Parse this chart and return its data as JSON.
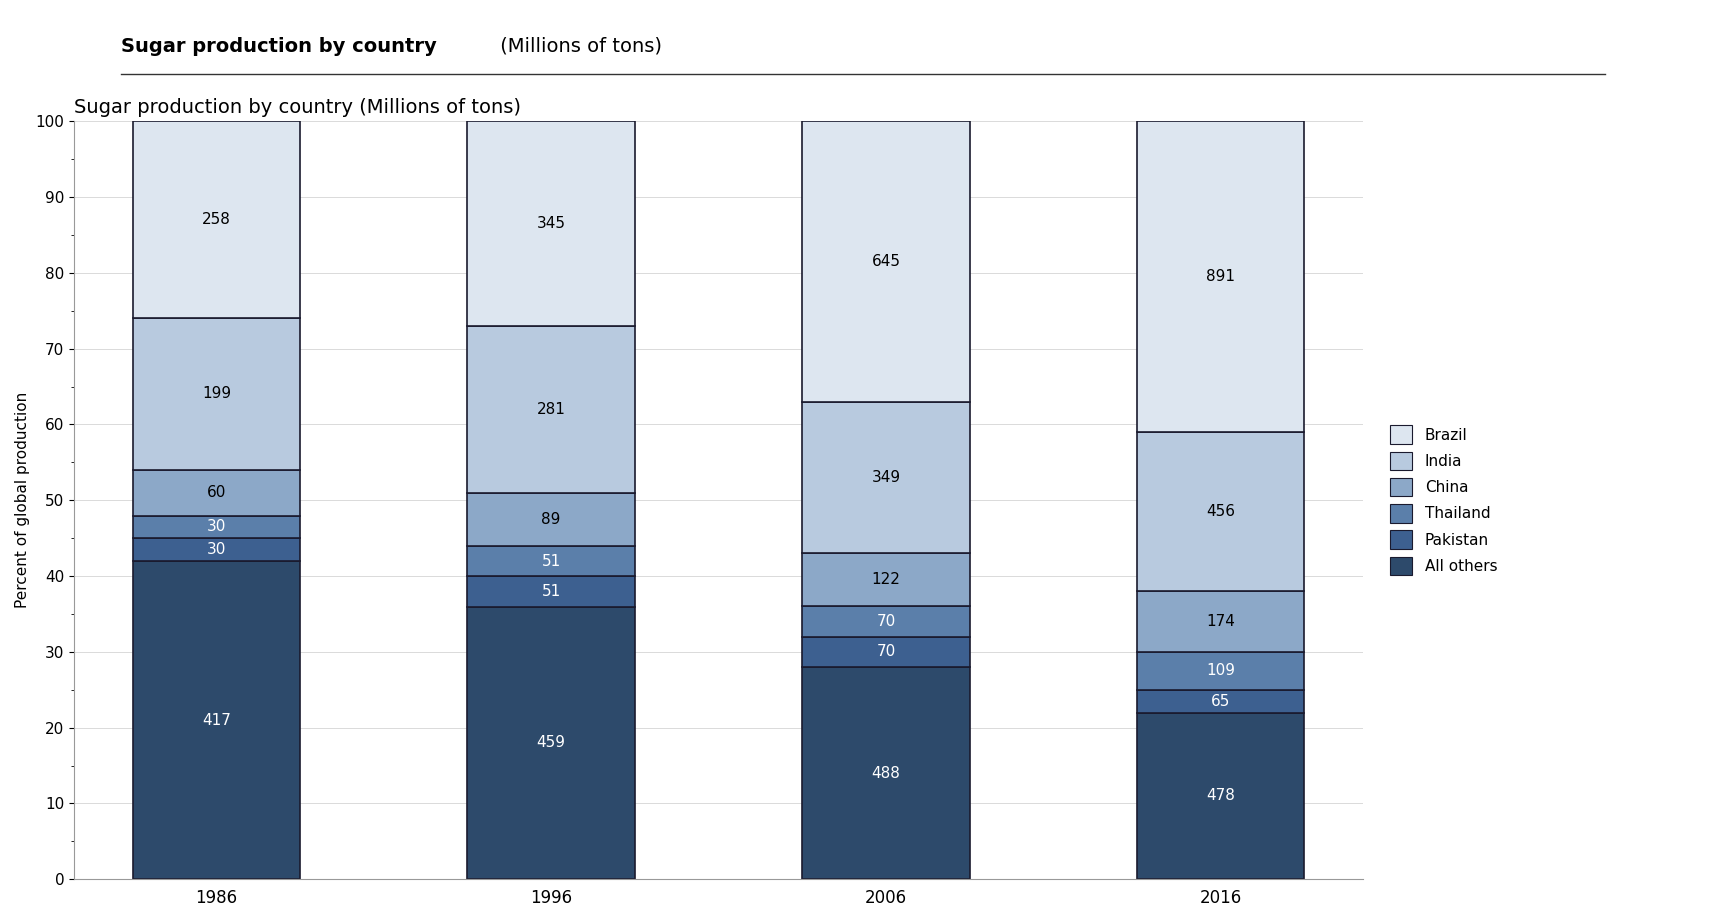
{
  "years": [
    "1986",
    "1996",
    "2006",
    "2016"
  ],
  "categories": [
    "All others",
    "Pakistan",
    "Thailand",
    "China",
    "India",
    "Brazil"
  ],
  "values": {
    "All others": [
      417,
      459,
      488,
      478
    ],
    "Pakistan": [
      30,
      51,
      70,
      65
    ],
    "Thailand": [
      30,
      51,
      70,
      109
    ],
    "China": [
      60,
      89,
      122,
      174
    ],
    "India": [
      199,
      281,
      349,
      456
    ],
    "Brazil": [
      258,
      345,
      645,
      891
    ]
  },
  "colors": {
    "All others": "#2d4a6b",
    "Pakistan": "#3d6090",
    "Thailand": "#5b7faa",
    "China": "#8ca8c8",
    "India": "#b8cadf",
    "Brazil": "#dde6f0"
  },
  "title_bold": "Sugar production by country",
  "title_normal": " (Millions of tons)",
  "ylabel": "Percent of global production",
  "bar_width": 0.5,
  "figsize": [
    17.26,
    9.22
  ],
  "dpi": 100,
  "ylim": [
    0,
    100
  ],
  "yticks": [
    0,
    10,
    20,
    30,
    40,
    50,
    60,
    70,
    80,
    90,
    100
  ],
  "background_color": "#ffffff",
  "text_color_dark": "#ffffff",
  "text_color_light": "#000000"
}
